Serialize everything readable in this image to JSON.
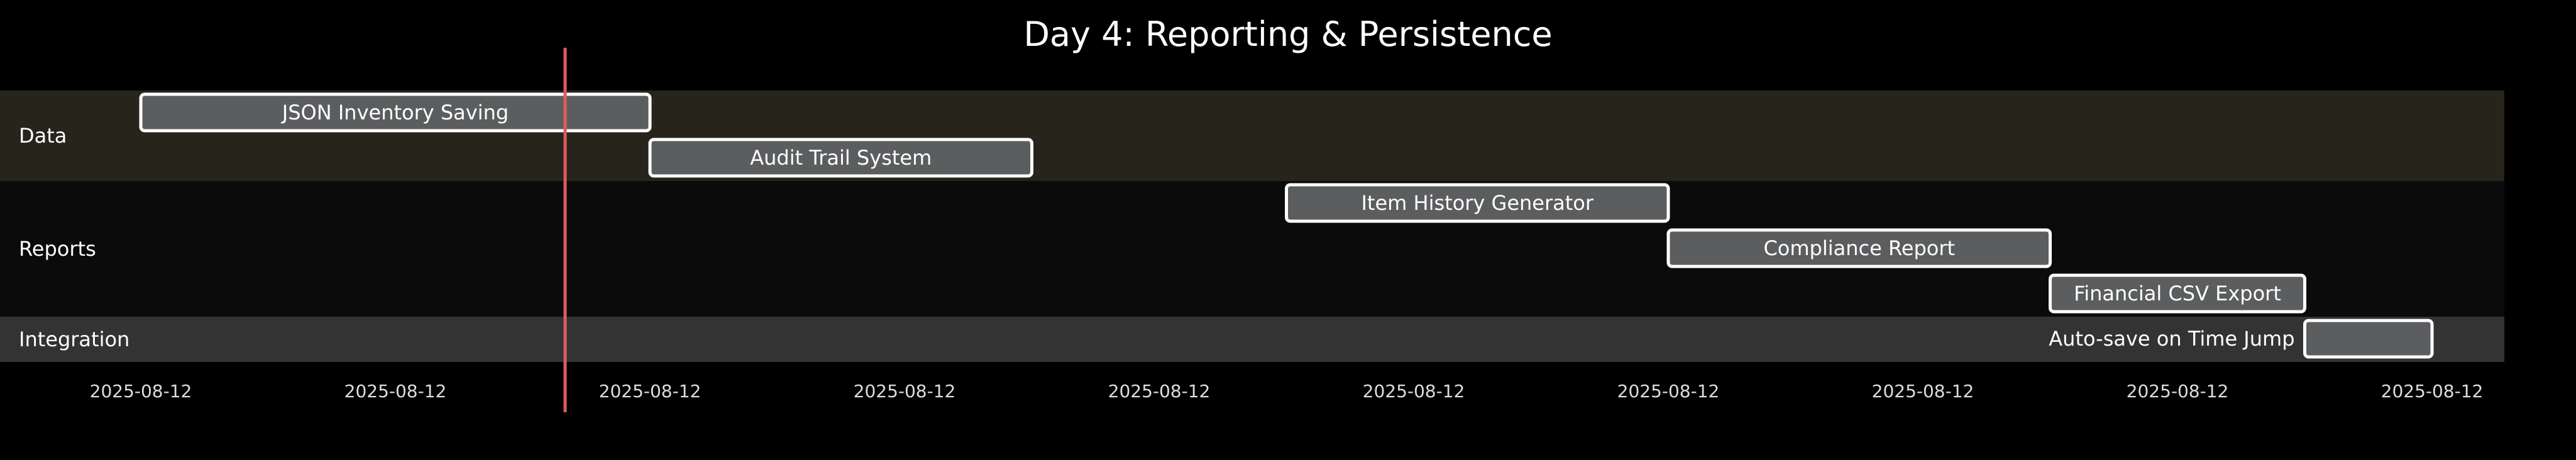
{
  "chart_data": {
    "type": "gantt",
    "title": "Day 4: Reporting & Persistence",
    "date": "2025-08-12",
    "time_axis": {
      "range": [
        "09:00",
        "18:30"
      ],
      "ticks": [
        {
          "time": "09:00",
          "label": "2025-08-12"
        },
        {
          "time": "10:00",
          "label": "2025-08-12"
        },
        {
          "time": "11:00",
          "label": "2025-08-12"
        },
        {
          "time": "12:00",
          "label": "2025-08-12"
        },
        {
          "time": "13:00",
          "label": "2025-08-12"
        },
        {
          "time": "14:00",
          "label": "2025-08-12"
        },
        {
          "time": "15:00",
          "label": "2025-08-12"
        },
        {
          "time": "16:00",
          "label": "2025-08-12"
        },
        {
          "time": "17:00",
          "label": "2025-08-12"
        },
        {
          "time": "18:00",
          "label": "2025-08-12"
        }
      ]
    },
    "today_marker": "10:40",
    "sections": [
      {
        "name": "Data",
        "rows": 2,
        "color": "#27241c"
      },
      {
        "name": "Reports",
        "rows": 3,
        "color": "#0b0b0b"
      },
      {
        "name": "Integration",
        "rows": 1,
        "color": "#333333"
      }
    ],
    "tasks": [
      {
        "name": "JSON Inventory Saving",
        "section": "Data",
        "start": "09:00",
        "end": "11:00",
        "label_position": "inside"
      },
      {
        "name": "Audit Trail System",
        "section": "Data",
        "start": "11:00",
        "end": "12:30",
        "label_position": "inside"
      },
      {
        "name": "Item History Generator",
        "section": "Reports",
        "start": "13:30",
        "end": "15:00",
        "label_position": "inside"
      },
      {
        "name": "Compliance Report",
        "section": "Reports",
        "start": "15:00",
        "end": "16:30",
        "label_position": "inside"
      },
      {
        "name": "Financial CSV Export",
        "section": "Reports",
        "start": "16:30",
        "end": "17:30",
        "label_position": "inside"
      },
      {
        "name": "Auto-save on Time Jump",
        "section": "Integration",
        "start": "17:30",
        "end": "18:00",
        "label_position": "left"
      }
    ],
    "colors": {
      "background": "#000000",
      "task_fill": "#5b5d5f",
      "task_stroke": "#ffffff",
      "today_line": "#e05a60",
      "text": "#ffffff",
      "tick_text": "#dddddd"
    }
  }
}
